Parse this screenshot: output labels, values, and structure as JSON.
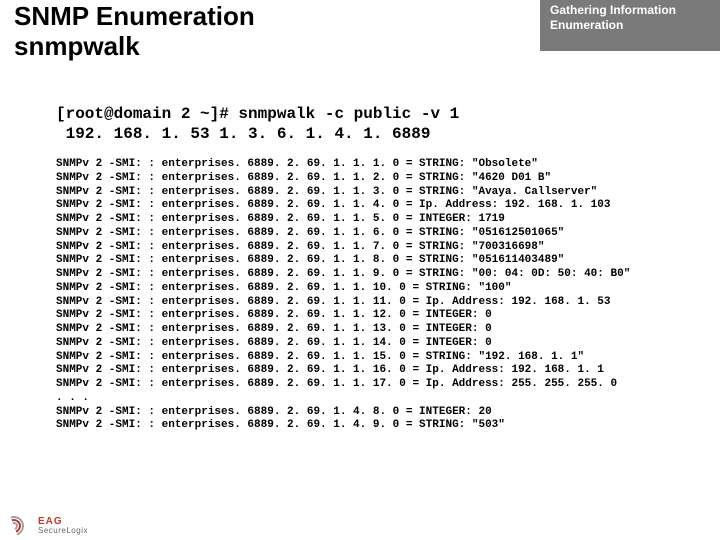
{
  "header": {
    "title_line1": "SNMP Enumeration",
    "title_line2": "snmpwalk",
    "tab_line1": "Gathering Information",
    "tab_line2": "Enumeration"
  },
  "command": {
    "line1": "[root@domain 2 ~]# snmpwalk -c public -v 1",
    "line2": " 192. 168. 1. 53 1. 3. 6. 1. 4. 1. 6889"
  },
  "output_lines": [
    "SNMPv 2 -SMI: : enterprises. 6889. 2. 69. 1. 1. 1. 0 = STRING: \"Obsolete\"",
    "SNMPv 2 -SMI: : enterprises. 6889. 2. 69. 1. 1. 2. 0 = STRING: \"4620 D01 B\"",
    "SNMPv 2 -SMI: : enterprises. 6889. 2. 69. 1. 1. 3. 0 = STRING: \"Avaya. Callserver\"",
    "SNMPv 2 -SMI: : enterprises. 6889. 2. 69. 1. 1. 4. 0 = Ip. Address: 192. 168. 1. 103",
    "SNMPv 2 -SMI: : enterprises. 6889. 2. 69. 1. 1. 5. 0 = INTEGER: 1719",
    "SNMPv 2 -SMI: : enterprises. 6889. 2. 69. 1. 1. 6. 0 = STRING: \"051612501065\"",
    "SNMPv 2 -SMI: : enterprises. 6889. 2. 69. 1. 1. 7. 0 = STRING: \"700316698\"",
    "SNMPv 2 -SMI: : enterprises. 6889. 2. 69. 1. 1. 8. 0 = STRING: \"051611403489\"",
    "SNMPv 2 -SMI: : enterprises. 6889. 2. 69. 1. 1. 9. 0 = STRING: \"00: 04: 0D: 50: 40: B0\"",
    "SNMPv 2 -SMI: : enterprises. 6889. 2. 69. 1. 1. 10. 0 = STRING: \"100\"",
    "SNMPv 2 -SMI: : enterprises. 6889. 2. 69. 1. 1. 11. 0 = Ip. Address: 192. 168. 1. 53",
    "SNMPv 2 -SMI: : enterprises. 6889. 2. 69. 1. 1. 12. 0 = INTEGER: 0",
    "SNMPv 2 -SMI: : enterprises. 6889. 2. 69. 1. 1. 13. 0 = INTEGER: 0",
    "SNMPv 2 -SMI: : enterprises. 6889. 2. 69. 1. 1. 14. 0 = INTEGER: 0",
    "SNMPv 2 -SMI: : enterprises. 6889. 2. 69. 1. 1. 15. 0 = STRING: \"192. 168. 1. 1\"",
    "SNMPv 2 -SMI: : enterprises. 6889. 2. 69. 1. 1. 16. 0 = Ip. Address: 192. 168. 1. 1",
    "SNMPv 2 -SMI: : enterprises. 6889. 2. 69. 1. 1. 17. 0 = Ip. Address: 255. 255. 255. 0",
    ". . .",
    "SNMPv 2 -SMI: : enterprises. 6889. 2. 69. 1. 4. 8. 0 = INTEGER: 20",
    "SNMPv 2 -SMI: : enterprises. 6889. 2. 69. 1. 4. 9. 0 = STRING: \"503\""
  ],
  "logo": {
    "line1": "EAG",
    "line2": "SecureLogix"
  },
  "styling": {
    "page_bg": "#ffffff",
    "tab_bg": "#7a7a7a",
    "tab_text": "#ffffff",
    "title_font": "Verdana",
    "title_fontsize_pt": 20,
    "body_font": "Courier New",
    "command_fontsize_pt": 12,
    "output_fontsize_pt": 8,
    "text_color": "#000000"
  }
}
